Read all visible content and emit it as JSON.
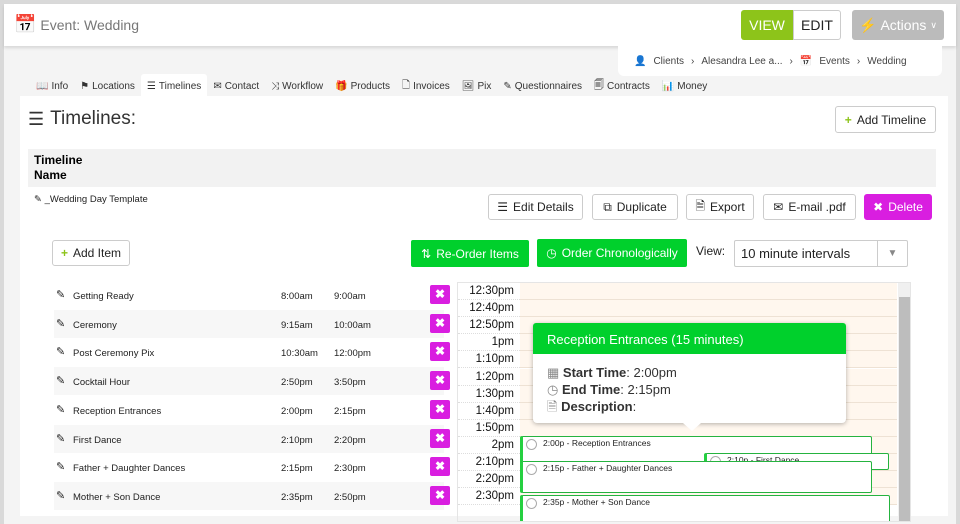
{
  "header": {
    "title": "Event: Wedding",
    "view": "VIEW",
    "edit": "EDIT",
    "actions": "Actions"
  },
  "breadcrumb": [
    "Clients",
    "Alesandra Lee a...",
    "Events",
    "Wedding"
  ],
  "tabs": [
    "Info",
    "Locations",
    "Timelines",
    "Contact",
    "Workflow",
    "Products",
    "Invoices",
    "Pix",
    "Questionnaires",
    "Contracts",
    "Money"
  ],
  "page": {
    "heading": "Timelines:",
    "add_timeline": "Add Timeline",
    "col_header": "Timeline Name",
    "timeline_name": "_Wedding Day Template"
  },
  "toolbar": {
    "edit_details": "Edit Details",
    "duplicate": "Duplicate",
    "export": "Export",
    "email": "E-mail .pdf",
    "delete": "Delete"
  },
  "items_toolbar": {
    "add_item": "Add Item",
    "reorder": "Re-Order Items",
    "chrono": "Order Chronologically",
    "view_label": "View:",
    "view_value": "10 minute intervals"
  },
  "items": [
    {
      "name": "Getting Ready",
      "start": "8:00am",
      "end": "9:00am"
    },
    {
      "name": "Ceremony",
      "start": "9:15am",
      "end": "10:00am"
    },
    {
      "name": "Post Ceremony Pix",
      "start": "10:30am",
      "end": "12:00pm"
    },
    {
      "name": "Cocktail Hour",
      "start": "2:50pm",
      "end": "3:50pm"
    },
    {
      "name": "Reception Entrances",
      "start": "2:00pm",
      "end": "2:15pm"
    },
    {
      "name": "First Dance",
      "start": "2:10pm",
      "end": "2:20pm"
    },
    {
      "name": "Father + Daughter Dances",
      "start": "2:15pm",
      "end": "2:30pm"
    },
    {
      "name": "Mother + Son Dance",
      "start": "2:35pm",
      "end": "2:50pm"
    }
  ],
  "calendar": {
    "times": [
      "12:30pm",
      "12:40pm",
      "12:50pm",
      "1pm",
      "1:10pm",
      "1:20pm",
      "1:30pm",
      "1:40pm",
      "1:50pm",
      "2pm",
      "2:10pm",
      "2:20pm",
      "2:30pm"
    ],
    "events": [
      "2:00p - Reception Entrances",
      "2:10p - First Dance",
      "2:15p - Father + Daughter Dances",
      "2:35p - Mother + Son Dance"
    ]
  },
  "tooltip": {
    "title": "Reception Entrances (15 minutes)",
    "start_label": "Start Time",
    "start": ": 2:00pm",
    "end_label": "End Time",
    "end": ": 2:15pm",
    "desc_label": "Description",
    ":": ":"
  },
  "colors": {
    "green": "#00d02c",
    "view": "#8dc41a",
    "delete": "#d91ee0"
  }
}
